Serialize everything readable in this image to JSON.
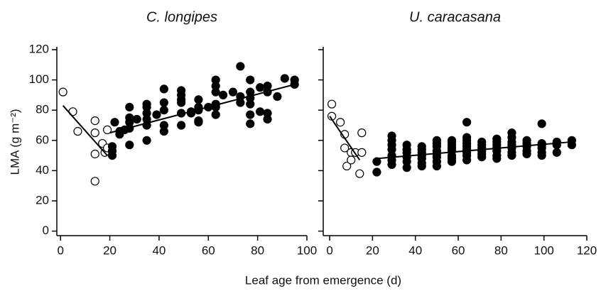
{
  "xlabel": "Leaf age from emergence (d)",
  "chart_data": [
    {
      "type": "scatter",
      "title": "C. longipes",
      "ylabel": "LMA (g m⁻²)",
      "xlim": [
        -1.5,
        100
      ],
      "xticks": [
        0,
        20,
        40,
        60,
        80,
        100
      ],
      "ylim": [
        -3,
        120
      ],
      "yticks": [
        0,
        20,
        40,
        60,
        80,
        100,
        120
      ],
      "ytick_labels": true,
      "series": [
        {
          "filled": false,
          "color": "#000",
          "x": [
            1,
            5,
            7,
            14,
            14,
            14,
            14,
            17,
            18,
            19,
            19
          ],
          "values": [
            92,
            79,
            66,
            73,
            65,
            51,
            33,
            58,
            52,
            67,
            55
          ]
        },
        {
          "filled": true,
          "color": "#000",
          "x": [
            21,
            21,
            21,
            22,
            24,
            24,
            26,
            28,
            28,
            28,
            28,
            28,
            31,
            35,
            35,
            35,
            35,
            35,
            35,
            39,
            42,
            42,
            42,
            42,
            42,
            49,
            49,
            49,
            49,
            49,
            49,
            53,
            53,
            56,
            56,
            56,
            56,
            56,
            60,
            63,
            63,
            63,
            63,
            63,
            63,
            66,
            70,
            73,
            73,
            73,
            77,
            77,
            77,
            77,
            77,
            77,
            81,
            81,
            84,
            84,
            84,
            84,
            88,
            91,
            95,
            95
          ],
          "values": [
            50,
            53,
            56,
            72,
            64,
            66,
            67,
            57,
            68,
            72,
            75,
            82,
            74,
            60,
            70,
            74,
            78,
            82,
            84,
            77,
            66,
            70,
            80,
            85,
            94,
            70,
            78,
            85,
            87,
            90,
            93,
            78,
            79,
            72,
            73,
            80,
            82,
            87,
            82,
            77,
            82,
            84,
            92,
            96,
            100,
            90,
            92,
            85,
            89,
            109,
            71,
            77,
            84,
            88,
            92,
            100,
            79,
            95,
            74,
            78,
            92,
            96,
            89,
            101,
            97,
            100
          ]
        }
      ],
      "lines": [
        {
          "x": [
            1,
            19
          ],
          "y": [
            83,
            50
          ]
        },
        {
          "x": [
            20,
            95
          ],
          "y": [
            65,
            97
          ]
        }
      ]
    },
    {
      "type": "scatter",
      "title": "U. caracasana",
      "xlim": [
        -3,
        120
      ],
      "xticks": [
        0,
        20,
        40,
        60,
        80,
        100,
        120
      ],
      "ylim": [
        -3,
        120
      ],
      "yticks": [
        0,
        20,
        40,
        60,
        80,
        100,
        120
      ],
      "ytick_labels": false,
      "series": [
        {
          "filled": false,
          "color": "#000",
          "x": [
            1,
            1,
            5,
            7,
            7,
            8,
            10,
            10,
            12,
            14,
            15,
            15
          ],
          "values": [
            84,
            76,
            72,
            64,
            55,
            43,
            52,
            47,
            52,
            38,
            65,
            52
          ]
        },
        {
          "filled": true,
          "color": "#000",
          "x": [
            22,
            22,
            29,
            29,
            29,
            29,
            29,
            29,
            29,
            36,
            36,
            36,
            36,
            36,
            36,
            43,
            43,
            43,
            43,
            43,
            43,
            43,
            50,
            50,
            50,
            50,
            50,
            50,
            50,
            50,
            57,
            57,
            57,
            57,
            57,
            57,
            57,
            57,
            64,
            64,
            64,
            64,
            64,
            64,
            64,
            64,
            64,
            71,
            71,
            71,
            71,
            71,
            71,
            78,
            78,
            78,
            78,
            78,
            78,
            78,
            85,
            85,
            85,
            85,
            85,
            85,
            85,
            92,
            92,
            92,
            92,
            92,
            99,
            99,
            99,
            99,
            99,
            99,
            106,
            106,
            106,
            113,
            113
          ],
          "values": [
            39,
            46,
            44,
            47,
            50,
            54,
            57,
            60,
            63,
            42,
            46,
            49,
            52,
            54,
            57,
            43,
            45,
            48,
            50,
            52,
            54,
            56,
            43,
            46,
            49,
            51,
            53,
            56,
            58,
            60,
            46,
            48,
            50,
            53,
            55,
            57,
            59,
            60,
            47,
            50,
            52,
            54,
            56,
            58,
            60,
            62,
            72,
            49,
            51,
            53,
            55,
            57,
            59,
            48,
            50,
            53,
            55,
            57,
            59,
            61,
            50,
            52,
            55,
            57,
            59,
            62,
            65,
            51,
            53,
            56,
            58,
            60,
            50,
            52,
            55,
            57,
            58,
            71,
            52,
            57,
            59,
            57,
            60
          ]
        }
      ],
      "lines": [
        {
          "x": [
            0,
            14
          ],
          "y": [
            76,
            47
          ]
        },
        {
          "x": [
            22,
            113
          ],
          "y": [
            48,
            59
          ]
        }
      ]
    }
  ]
}
